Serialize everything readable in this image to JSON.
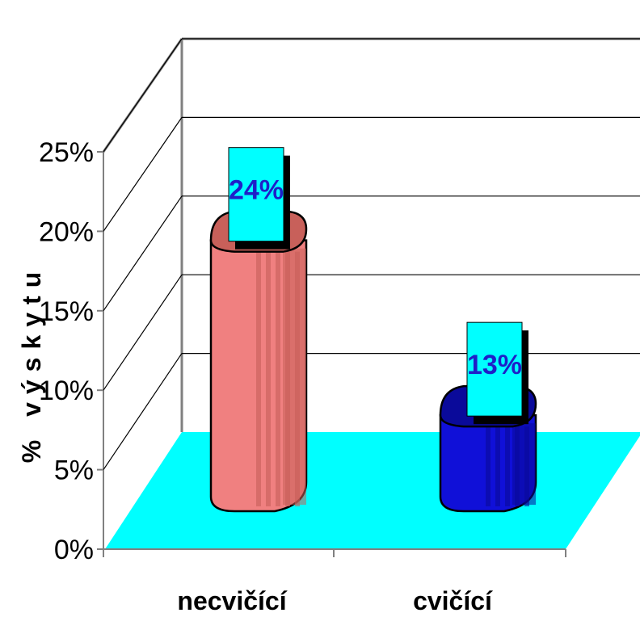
{
  "chart_data": {
    "type": "bar",
    "categories": [
      "necvičící",
      "cvičící"
    ],
    "values": [
      24,
      13
    ],
    "data_labels": [
      "24%",
      "13%"
    ],
    "ylabel": "% výskytu",
    "yticks": [
      "0%",
      "5%",
      "10%",
      "15%",
      "20%",
      "25%"
    ],
    "ylim": [
      0,
      25
    ],
    "grid": true,
    "three_d": true,
    "colors": {
      "bars": [
        "#f08080",
        "#1010d8"
      ],
      "bar_dark": [
        "#c8605a",
        "#0a0a9a"
      ],
      "floor": "#00ffff",
      "label_box": "#00ffff",
      "label_text": "#1f1fc8",
      "grid": "#000000",
      "walls": "#808080"
    }
  }
}
